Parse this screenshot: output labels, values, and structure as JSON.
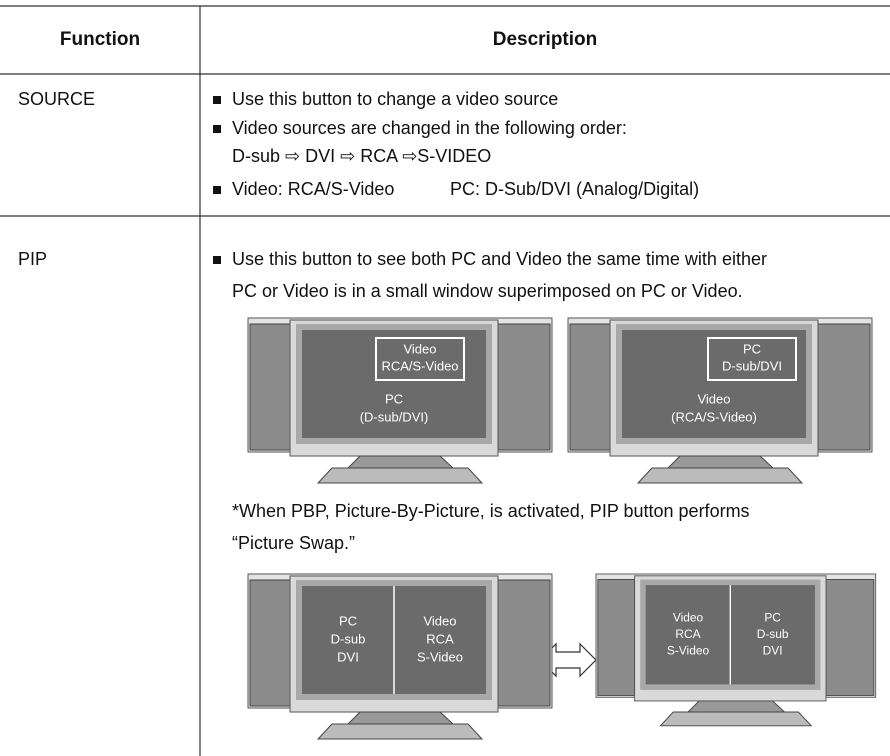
{
  "header": {
    "function": "Function",
    "description": "Description"
  },
  "rows": [
    {
      "function": "SOURCE",
      "bullets": [
        {
          "text": "Use this button to change a video source"
        },
        {
          "text": "Video sources are changed in the following order:",
          "continuation": "D-sub ⇨ DVI ⇨ RCA ⇨S-VIDEO"
        },
        {
          "text": "Video: RCA/S-Video",
          "extra": "PC: D-Sub/DVI (Analog/Digital)"
        }
      ]
    },
    {
      "function": "PIP",
      "bullets": [
        {
          "text": "Use this button to see both PC and Video the same time with either",
          "continuation": "PC or Video is in a small window superimposed on PC or Video."
        }
      ],
      "figures": [
        {
          "inset": [
            "Video",
            "RCA/S-Video"
          ],
          "main": [
            "PC",
            "(D-sub/DVI)"
          ]
        },
        {
          "inset": [
            "PC",
            "D-sub/DVI"
          ],
          "main": [
            "Video",
            "(RCA/S-Video)"
          ]
        }
      ],
      "note": [
        "*When PBP, Picture-By-Picture, is activated, PIP button performs",
        "“Picture Swap.”"
      ],
      "swap_figures": [
        {
          "left": [
            "PC",
            "D-sub",
            "DVI"
          ],
          "right": [
            "Video",
            "RCA",
            "S-Video"
          ]
        },
        {
          "left": [
            "Video",
            "RCA",
            "S-Video"
          ],
          "right": [
            "PC",
            "D-sub",
            "DVI"
          ]
        }
      ]
    }
  ]
}
